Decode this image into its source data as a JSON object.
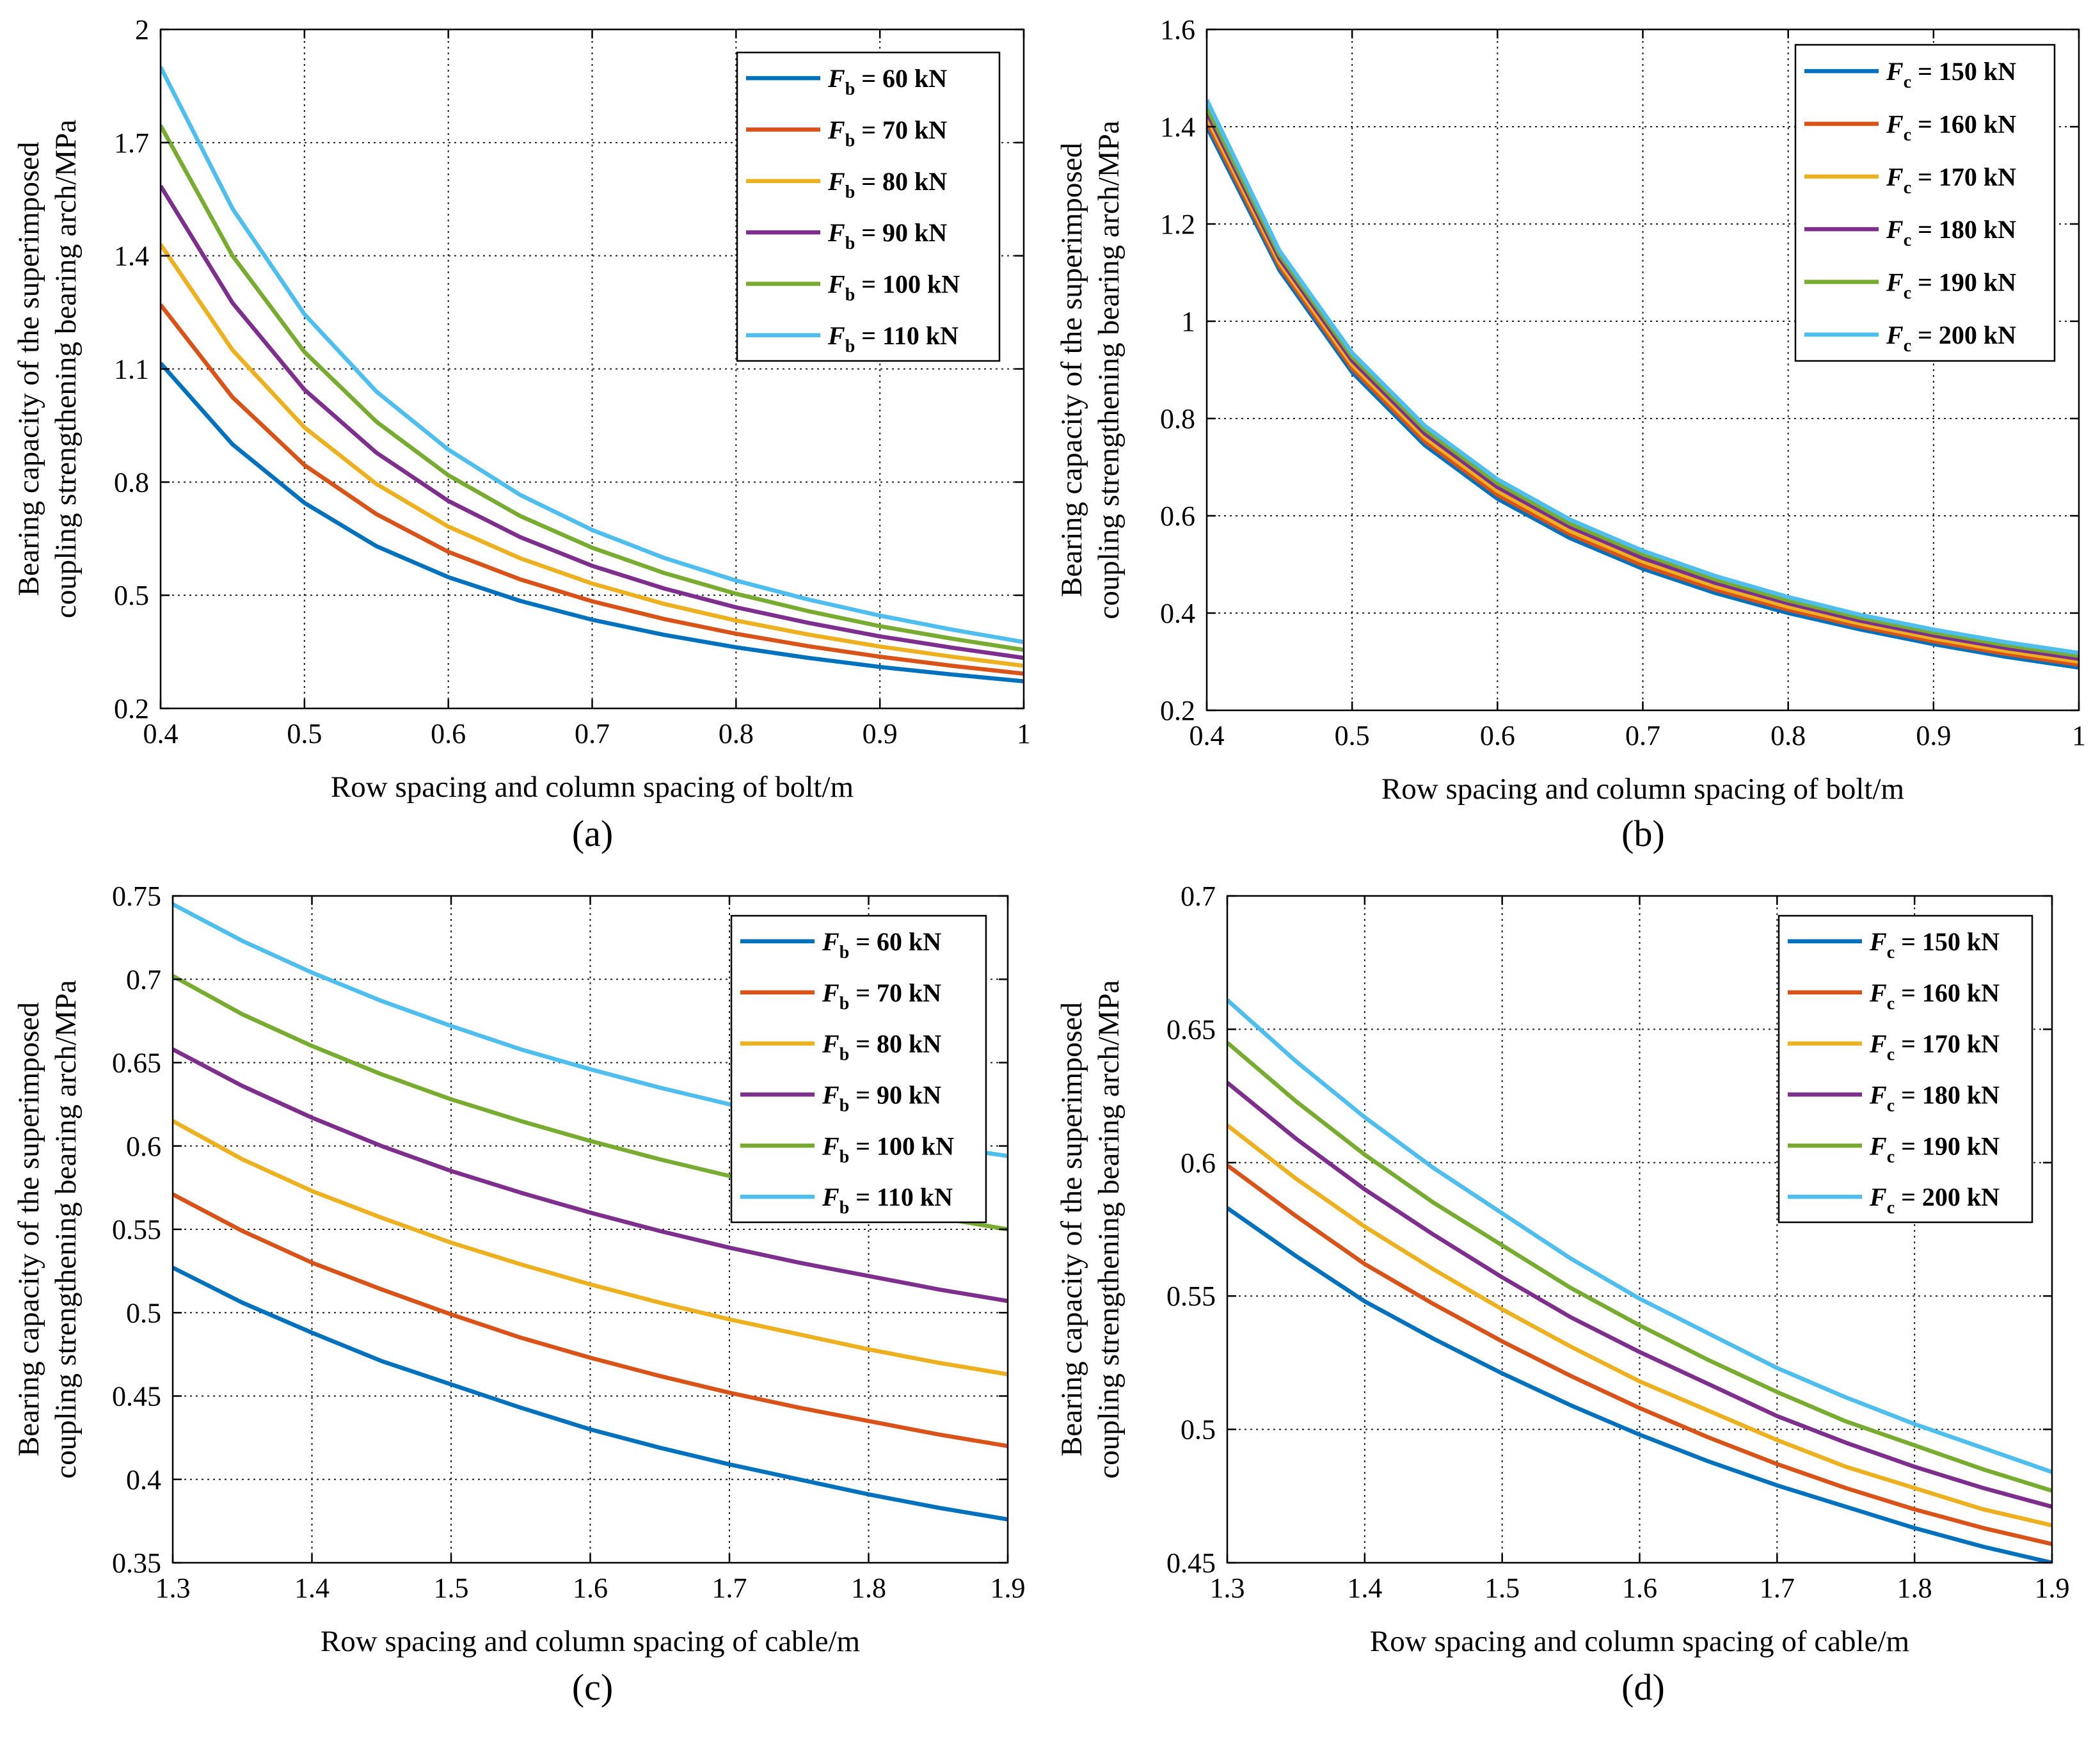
{
  "chart_data": [
    {
      "panel": "(a)",
      "type": "line",
      "xlabel": "Row spacing and column spacing of bolt/m",
      "ylabel": [
        "Bearing capacity of the superimposed",
        "coupling strengthening bearing arch/MPa"
      ],
      "xlim": [
        0.4,
        1.0
      ],
      "ylim": [
        0.2,
        2.0
      ],
      "xticks": [
        0.4,
        0.5,
        0.6,
        0.7,
        0.8,
        0.9,
        1.0
      ],
      "xtick_labels": [
        "0.4",
        "0.5",
        "0.6",
        "0.7",
        "0.8",
        "0.9",
        "1"
      ],
      "yticks": [
        0.2,
        0.5,
        0.8,
        1.1,
        1.4,
        1.7,
        2.0
      ],
      "ytick_labels": [
        "0.2",
        "0.5",
        "0.8",
        "1.1",
        "1.4",
        "1.7",
        "2"
      ],
      "grid": true,
      "legend_position": "top-right",
      "x": [
        0.4,
        0.45,
        0.5,
        0.55,
        0.6,
        0.65,
        0.7,
        0.75,
        0.8,
        0.85,
        0.9,
        0.95,
        1.0
      ],
      "series": [
        {
          "name": "60 kN",
          "var": "F",
          "sub": "b",
          "color": "#0072BD",
          "values": [
            1.115,
            0.9,
            0.745,
            0.63,
            0.548,
            0.485,
            0.435,
            0.395,
            0.362,
            0.334,
            0.31,
            0.29,
            0.272
          ]
        },
        {
          "name": "70 kN",
          "var": "F",
          "sub": "b",
          "color": "#D95319",
          "values": [
            1.27,
            1.025,
            0.845,
            0.715,
            0.615,
            0.542,
            0.484,
            0.437,
            0.398,
            0.365,
            0.337,
            0.313,
            0.292
          ]
        },
        {
          "name": "80 kN",
          "var": "F",
          "sub": "b",
          "color": "#EDB120",
          "values": [
            1.43,
            1.15,
            0.945,
            0.795,
            0.682,
            0.598,
            0.531,
            0.477,
            0.433,
            0.396,
            0.364,
            0.337,
            0.313
          ]
        },
        {
          "name": "90 kN",
          "var": "F",
          "sub": "b",
          "color": "#7E2F8E",
          "values": [
            1.585,
            1.275,
            1.045,
            0.878,
            0.75,
            0.654,
            0.578,
            0.518,
            0.468,
            0.427,
            0.391,
            0.361,
            0.334
          ]
        },
        {
          "name": "100 kN",
          "var": "F",
          "sub": "b",
          "color": "#77AC30",
          "values": [
            1.745,
            1.4,
            1.145,
            0.96,
            0.818,
            0.71,
            0.626,
            0.559,
            0.504,
            0.458,
            0.418,
            0.385,
            0.355
          ]
        },
        {
          "name": "110 kN",
          "var": "F",
          "sub": "b",
          "color": "#4DBEEE",
          "values": [
            1.9,
            1.525,
            1.245,
            1.04,
            0.886,
            0.766,
            0.673,
            0.599,
            0.539,
            0.489,
            0.446,
            0.409,
            0.376
          ]
        }
      ]
    },
    {
      "panel": "(b)",
      "type": "line",
      "xlabel": "Row spacing and column spacing of bolt/m",
      "ylabel": [
        "Bearing capacity of the superimposed",
        "coupling strengthening bearing arch/MPa"
      ],
      "xlim": [
        0.4,
        1.0
      ],
      "ylim": [
        0.2,
        1.6
      ],
      "xticks": [
        0.4,
        0.5,
        0.6,
        0.7,
        0.8,
        0.9,
        1.0
      ],
      "xtick_labels": [
        "0.4",
        "0.5",
        "0.6",
        "0.7",
        "0.8",
        "0.9",
        "1"
      ],
      "yticks": [
        0.2,
        0.4,
        0.6,
        0.8,
        1.0,
        1.2,
        1.4,
        1.6
      ],
      "ytick_labels": [
        "0.2",
        "0.4",
        "0.6",
        "0.8",
        "1",
        "1.2",
        "1.4",
        "1.6"
      ],
      "grid": true,
      "legend_position": "top-right",
      "x": [
        0.4,
        0.45,
        0.5,
        0.55,
        0.6,
        0.65,
        0.7,
        0.75,
        0.8,
        0.85,
        0.9,
        0.95,
        1.0
      ],
      "series": [
        {
          "name": "150 kN",
          "var": "F",
          "sub": "c",
          "color": "#0072BD",
          "values": [
            1.4,
            1.105,
            0.895,
            0.745,
            0.635,
            0.554,
            0.491,
            0.441,
            0.4,
            0.366,
            0.336,
            0.31,
            0.288
          ]
        },
        {
          "name": "160 kN",
          "var": "F",
          "sub": "c",
          "color": "#D95319",
          "values": [
            1.41,
            1.113,
            0.903,
            0.753,
            0.643,
            0.562,
            0.498,
            0.448,
            0.407,
            0.372,
            0.342,
            0.316,
            0.294
          ]
        },
        {
          "name": "170 kN",
          "var": "F",
          "sub": "c",
          "color": "#EDB120",
          "values": [
            1.42,
            1.121,
            0.911,
            0.761,
            0.651,
            0.569,
            0.506,
            0.455,
            0.413,
            0.378,
            0.348,
            0.322,
            0.3
          ]
        },
        {
          "name": "180 kN",
          "var": "F",
          "sub": "c",
          "color": "#7E2F8E",
          "values": [
            1.43,
            1.129,
            0.919,
            0.769,
            0.659,
            0.577,
            0.513,
            0.462,
            0.42,
            0.384,
            0.354,
            0.328,
            0.306
          ]
        },
        {
          "name": "190 kN",
          "var": "F",
          "sub": "c",
          "color": "#77AC30",
          "values": [
            1.44,
            1.137,
            0.927,
            0.777,
            0.667,
            0.584,
            0.521,
            0.469,
            0.426,
            0.39,
            0.36,
            0.334,
            0.312
          ]
        },
        {
          "name": "200 kN",
          "var": "F",
          "sub": "c",
          "color": "#4DBEEE",
          "values": [
            1.455,
            1.145,
            0.935,
            0.785,
            0.675,
            0.592,
            0.528,
            0.476,
            0.433,
            0.396,
            0.366,
            0.34,
            0.318
          ]
        }
      ]
    },
    {
      "panel": "(c)",
      "type": "line",
      "xlabel": "Row spacing and column spacing of cable/m",
      "ylabel": [
        "Bearing capacity of the superimposed",
        "coupling strengthening bearing arch/MPa"
      ],
      "xlim": [
        1.3,
        1.9
      ],
      "ylim": [
        0.35,
        0.75
      ],
      "xticks": [
        1.3,
        1.4,
        1.5,
        1.6,
        1.7,
        1.8,
        1.9
      ],
      "xtick_labels": [
        "1.3",
        "1.4",
        "1.5",
        "1.6",
        "1.7",
        "1.8",
        "1.9"
      ],
      "yticks": [
        0.35,
        0.4,
        0.45,
        0.5,
        0.55,
        0.6,
        0.65,
        0.7,
        0.75
      ],
      "ytick_labels": [
        "0.35",
        "0.4",
        "0.45",
        "0.5",
        "0.55",
        "0.6",
        "0.65",
        "0.7",
        "0.75"
      ],
      "grid": true,
      "legend_position": "top-right",
      "x": [
        1.3,
        1.35,
        1.4,
        1.45,
        1.5,
        1.55,
        1.6,
        1.65,
        1.7,
        1.75,
        1.8,
        1.85,
        1.9
      ],
      "series": [
        {
          "name": "60 kN",
          "var": "F",
          "sub": "b",
          "color": "#0072BD",
          "values": [
            0.527,
            0.506,
            0.488,
            0.471,
            0.457,
            0.443,
            0.43,
            0.419,
            0.409,
            0.4,
            0.391,
            0.383,
            0.376
          ]
        },
        {
          "name": "70 kN",
          "var": "F",
          "sub": "b",
          "color": "#D95319",
          "values": [
            0.571,
            0.549,
            0.53,
            0.514,
            0.499,
            0.485,
            0.473,
            0.462,
            0.452,
            0.443,
            0.435,
            0.427,
            0.42
          ]
        },
        {
          "name": "80 kN",
          "var": "F",
          "sub": "b",
          "color": "#EDB120",
          "values": [
            0.615,
            0.592,
            0.573,
            0.557,
            0.542,
            0.529,
            0.517,
            0.506,
            0.496,
            0.487,
            0.478,
            0.47,
            0.463
          ]
        },
        {
          "name": "90 kN",
          "var": "F",
          "sub": "b",
          "color": "#7E2F8E",
          "values": [
            0.658,
            0.636,
            0.617,
            0.6,
            0.585,
            0.572,
            0.56,
            0.549,
            0.539,
            0.53,
            0.522,
            0.514,
            0.507
          ]
        },
        {
          "name": "100 kN",
          "var": "F",
          "sub": "b",
          "color": "#77AC30",
          "values": [
            0.702,
            0.679,
            0.66,
            0.643,
            0.628,
            0.615,
            0.603,
            0.592,
            0.582,
            0.573,
            0.565,
            0.557,
            0.55
          ]
        },
        {
          "name": "110 kN",
          "var": "F",
          "sub": "b",
          "color": "#4DBEEE",
          "values": [
            0.745,
            0.723,
            0.704,
            0.687,
            0.672,
            0.658,
            0.646,
            0.635,
            0.625,
            0.616,
            0.608,
            0.6,
            0.594
          ]
        }
      ]
    },
    {
      "panel": "(d)",
      "type": "line",
      "xlabel": "Row spacing and column spacing of cable/m",
      "ylabel": [
        "Bearing capacity of the superimposed",
        "coupling strengthening bearing arch/MPa"
      ],
      "xlim": [
        1.3,
        1.9
      ],
      "ylim": [
        0.45,
        0.7
      ],
      "xticks": [
        1.3,
        1.4,
        1.5,
        1.6,
        1.7,
        1.8,
        1.9
      ],
      "xtick_labels": [
        "1.3",
        "1.4",
        "1.5",
        "1.6",
        "1.7",
        "1.8",
        "1.9"
      ],
      "yticks": [
        0.45,
        0.5,
        0.55,
        0.6,
        0.65,
        0.7
      ],
      "ytick_labels": [
        "0.45",
        "0.5",
        "0.55",
        "0.6",
        "0.65",
        "0.7"
      ],
      "grid": true,
      "legend_position": "top-right",
      "x": [
        1.3,
        1.35,
        1.4,
        1.45,
        1.5,
        1.55,
        1.6,
        1.65,
        1.7,
        1.75,
        1.8,
        1.85,
        1.9
      ],
      "series": [
        {
          "name": "150 kN",
          "var": "F",
          "sub": "c",
          "color": "#0072BD",
          "values": [
            0.583,
            0.565,
            0.548,
            0.534,
            0.521,
            0.509,
            0.498,
            0.488,
            0.479,
            0.471,
            0.463,
            0.456,
            0.45
          ]
        },
        {
          "name": "160 kN",
          "var": "F",
          "sub": "c",
          "color": "#D95319",
          "values": [
            0.599,
            0.58,
            0.562,
            0.547,
            0.533,
            0.52,
            0.508,
            0.497,
            0.487,
            0.478,
            0.47,
            0.463,
            0.457
          ]
        },
        {
          "name": "170 kN",
          "var": "F",
          "sub": "c",
          "color": "#EDB120",
          "values": [
            0.614,
            0.594,
            0.576,
            0.56,
            0.545,
            0.531,
            0.518,
            0.507,
            0.496,
            0.486,
            0.478,
            0.47,
            0.464
          ]
        },
        {
          "name": "180 kN",
          "var": "F",
          "sub": "c",
          "color": "#7E2F8E",
          "values": [
            0.63,
            0.609,
            0.59,
            0.573,
            0.557,
            0.542,
            0.529,
            0.517,
            0.505,
            0.495,
            0.486,
            0.478,
            0.471
          ]
        },
        {
          "name": "190 kN",
          "var": "F",
          "sub": "c",
          "color": "#77AC30",
          "values": [
            0.645,
            0.623,
            0.603,
            0.585,
            0.569,
            0.553,
            0.539,
            0.526,
            0.514,
            0.503,
            0.494,
            0.485,
            0.477
          ]
        },
        {
          "name": "200 kN",
          "var": "F",
          "sub": "c",
          "color": "#4DBEEE",
          "values": [
            0.661,
            0.638,
            0.617,
            0.598,
            0.581,
            0.564,
            0.549,
            0.536,
            0.523,
            0.512,
            0.502,
            0.493,
            0.484
          ]
        }
      ]
    }
  ]
}
